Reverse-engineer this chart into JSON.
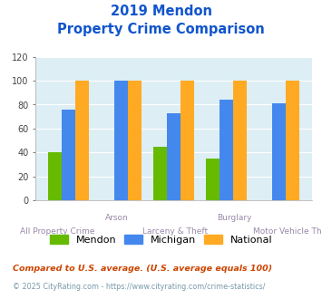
{
  "title_line1": "2019 Mendon",
  "title_line2": "Property Crime Comparison",
  "categories": [
    "All Property Crime",
    "Arson",
    "Larceny & Theft",
    "Burglary",
    "Motor Vehicle Theft"
  ],
  "x_labels_row1": [
    "",
    "Arson",
    "",
    "Burglary",
    ""
  ],
  "x_labels_row2": [
    "All Property Crime",
    "",
    "Larceny & Theft",
    "",
    "Motor Vehicle Theft"
  ],
  "mendon": [
    40,
    0,
    45,
    35,
    0
  ],
  "michigan": [
    76,
    100,
    73,
    84,
    81
  ],
  "national": [
    100,
    100,
    100,
    100,
    100
  ],
  "mendon_color": "#66bb00",
  "michigan_color": "#4488ee",
  "national_color": "#ffaa22",
  "ylim": [
    0,
    120
  ],
  "yticks": [
    0,
    20,
    40,
    60,
    80,
    100,
    120
  ],
  "chart_bg": "#ddeef5",
  "fig_bg": "#ffffff",
  "title_color": "#1155cc",
  "xlabel_color": "#9988aa",
  "legend_labels": [
    "Mendon",
    "Michigan",
    "National"
  ],
  "footnote1": "Compared to U.S. average. (U.S. average equals 100)",
  "footnote2": "© 2025 CityRating.com - https://www.cityrating.com/crime-statistics/",
  "footnote1_color": "#cc4400",
  "footnote2_color": "#7799aa"
}
